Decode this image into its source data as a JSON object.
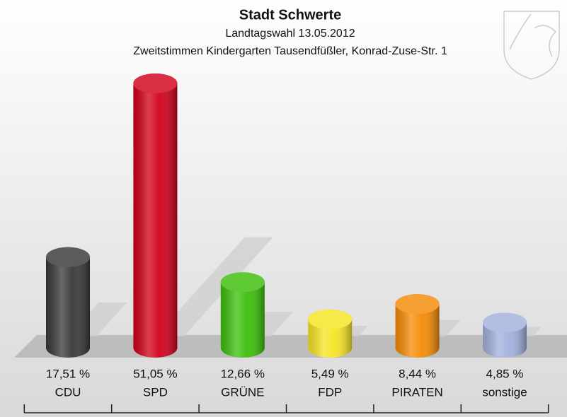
{
  "chart_data": {
    "type": "bar",
    "title": "Stadt Schwerte",
    "subtitle": "Landtagswahl 13.05.2012",
    "caption": "Zweitstimmen Kindergarten Tausendfüßler, Konrad-Zuse-Str. 1",
    "categories": [
      "CDU",
      "SPD",
      "GRÜNE",
      "FDP",
      "PIRATEN",
      "sonstige"
    ],
    "values": [
      17.51,
      51.05,
      12.66,
      5.49,
      8.44,
      4.85
    ],
    "value_labels": [
      "17,51 %",
      "51,05 %",
      "12,66 %",
      "5,49 %",
      "8,44 %",
      "4,85 %"
    ],
    "colors": [
      "#383838",
      "#d1001a",
      "#3cbf0a",
      "#f7e423",
      "#f58a06",
      "#a2b0dc"
    ]
  }
}
